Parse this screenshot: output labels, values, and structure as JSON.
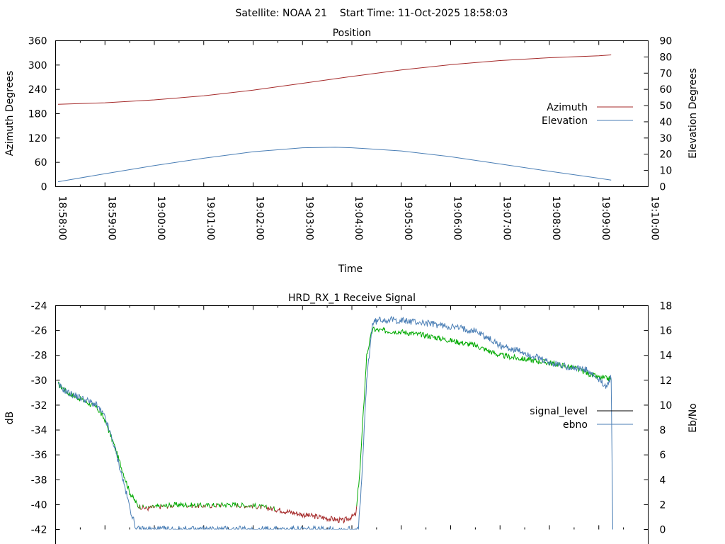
{
  "page_title": "Satellite: NOAA 21    Start Time: 11-Oct-2025 18:58:03",
  "chart_data": [
    {
      "type": "line",
      "title": "Position",
      "xlabel": "Time",
      "ylabel": "Azimuth Degrees",
      "y2label": "Elevation Degrees",
      "x_ticks": [
        "18:58:00",
        "18:59:00",
        "19:00:00",
        "19:01:00",
        "19:02:00",
        "19:03:00",
        "19:04:00",
        "19:05:00",
        "19:06:00",
        "19:07:00",
        "19:08:00",
        "19:09:00",
        "19:10:00"
      ],
      "xlim": [
        "18:58:00",
        "19:10:00"
      ],
      "ylim": [
        0,
        360
      ],
      "y_ticks": [
        0,
        60,
        120,
        180,
        240,
        300,
        360
      ],
      "y2lim": [
        0,
        90
      ],
      "y2_ticks": [
        0,
        10,
        20,
        30,
        40,
        50,
        60,
        70,
        80,
        90
      ],
      "legend_position": "right",
      "series": [
        {
          "name": "Azimuth",
          "axis": "y",
          "color": "#a52a2a",
          "x": [
            "18:58:03",
            "18:59:00",
            "19:00:00",
            "19:01:00",
            "19:02:00",
            "19:03:00",
            "19:04:00",
            "19:05:00",
            "19:06:00",
            "19:07:00",
            "19:08:00",
            "19:09:00",
            "19:09:15"
          ],
          "values": [
            203,
            207,
            214,
            224,
            238,
            255,
            272,
            288,
            301,
            311,
            318,
            323,
            325
          ]
        },
        {
          "name": "Elevation",
          "axis": "y2",
          "color": "#4a7eb5",
          "x": [
            "18:58:03",
            "18:59:00",
            "19:00:00",
            "19:01:00",
            "19:02:00",
            "19:03:00",
            "19:03:40",
            "19:04:00",
            "19:05:00",
            "19:06:00",
            "19:07:00",
            "19:08:00",
            "19:09:00",
            "19:09:15"
          ],
          "values": [
            3,
            8,
            13,
            17.5,
            21.5,
            24,
            24.3,
            24,
            22,
            18.5,
            14,
            9.5,
            5.2,
            4
          ]
        }
      ]
    },
    {
      "type": "line",
      "title": "HRD_RX_1 Receive Signal",
      "ylabel": "dB",
      "y2label": "Eb/No",
      "ylim": [
        -42,
        -24
      ],
      "y_ticks": [
        -42,
        -40,
        -38,
        -36,
        -34,
        -32,
        -30,
        -28,
        -26,
        -24
      ],
      "y2lim": [
        0,
        18
      ],
      "y2_ticks": [
        0,
        2,
        4,
        6,
        8,
        10,
        12,
        14,
        16,
        18
      ],
      "xlim": [
        "18:58:00",
        "19:10:00"
      ],
      "legend_position": "right",
      "series": [
        {
          "name": "signal_level",
          "axis": "y",
          "color": "#000000",
          "segment_colors": {
            "below": "#a52a2a",
            "above": "#00aa00",
            "threshold": -40.2
          },
          "x": [
            "18:58:03",
            "18:58:15",
            "18:58:30",
            "18:58:50",
            "18:59:00",
            "18:59:10",
            "18:59:20",
            "18:59:30",
            "18:59:40",
            "18:59:50",
            "19:00:00",
            "19:00:30",
            "19:01:00",
            "19:01:30",
            "19:02:00",
            "19:02:30",
            "19:03:00",
            "19:03:30",
            "19:03:50",
            "19:04:05",
            "19:04:10",
            "19:04:18",
            "19:04:25",
            "19:04:35",
            "19:05:00",
            "19:05:30",
            "19:06:00",
            "19:06:30",
            "19:07:00",
            "19:07:30",
            "19:08:00",
            "19:08:30",
            "19:08:45",
            "19:09:00",
            "19:09:15"
          ],
          "values": [
            -30.3,
            -31,
            -31.5,
            -32.2,
            -33.2,
            -35,
            -37,
            -39,
            -40.1,
            -40.3,
            -40.2,
            -40,
            -40.1,
            -40,
            -40.1,
            -40.4,
            -40.8,
            -41.1,
            -41.3,
            -40.8,
            -37,
            -28,
            -25.9,
            -26,
            -26.1,
            -26.4,
            -26.8,
            -27.2,
            -28,
            -28.3,
            -28.6,
            -29,
            -29.4,
            -29.8,
            -29.9
          ]
        },
        {
          "name": "ebno",
          "axis": "y2",
          "color": "#4a7eb5",
          "x": [
            "18:58:03",
            "18:58:15",
            "18:58:30",
            "18:58:50",
            "18:59:00",
            "18:59:10",
            "18:59:20",
            "18:59:30",
            "18:59:38",
            "19:04:08",
            "19:04:12",
            "19:04:18",
            "19:04:25",
            "19:04:35",
            "19:05:00",
            "19:05:30",
            "19:06:00",
            "19:06:30",
            "19:07:00",
            "19:07:30",
            "19:08:00",
            "19:08:30",
            "19:08:45",
            "19:09:00",
            "19:09:10",
            "19:09:15",
            "19:09:17"
          ],
          "values": [
            11.6,
            11,
            10.6,
            10,
            9,
            7,
            4.5,
            1.8,
            0,
            0,
            4,
            12,
            16.6,
            16.9,
            16.8,
            16.6,
            16.3,
            16,
            14.8,
            14.2,
            13.4,
            13,
            12.8,
            12,
            11.5,
            12.3,
            0
          ]
        }
      ]
    }
  ]
}
